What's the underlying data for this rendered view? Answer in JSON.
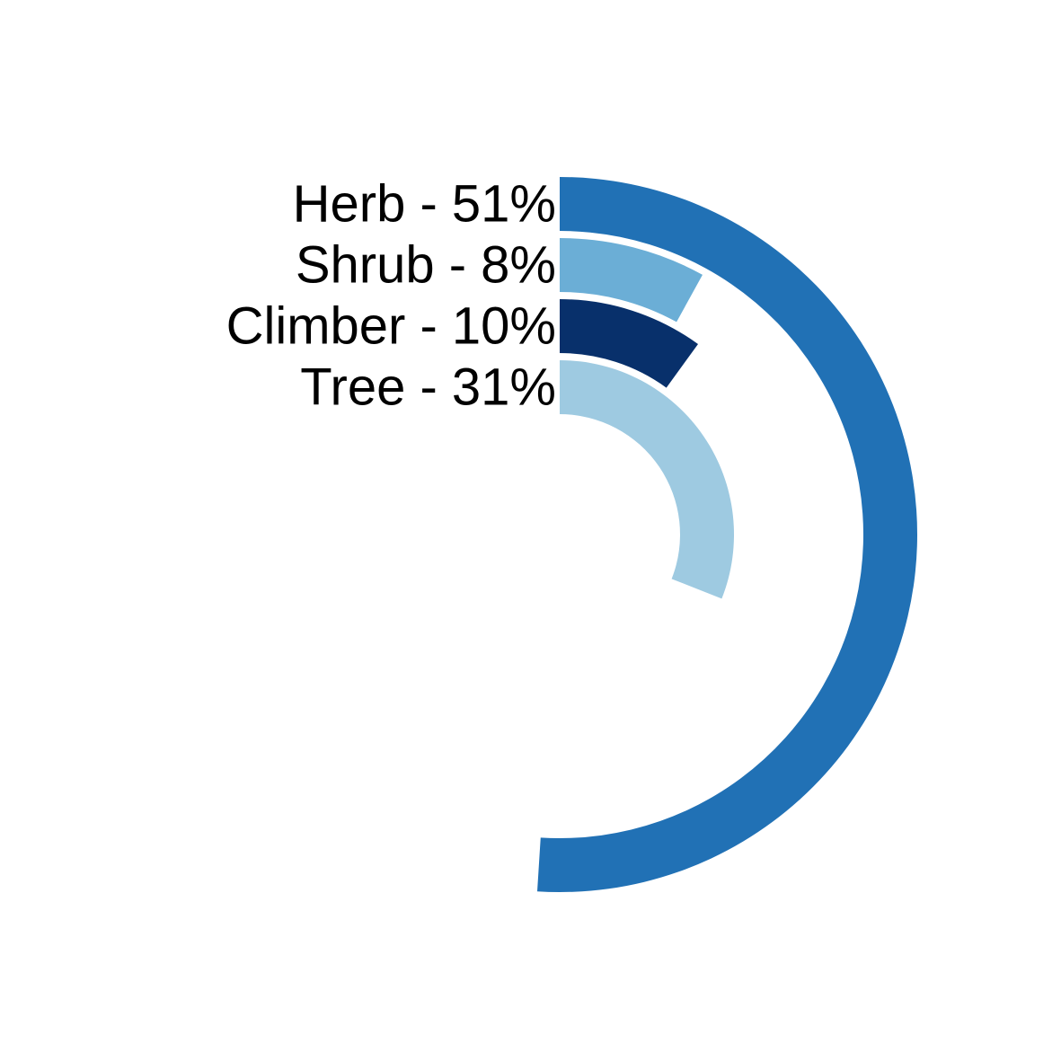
{
  "chart_data": {
    "type": "radial-bar",
    "title": "",
    "categories": [
      "Herb",
      "Shrub",
      "Climber",
      "Tree"
    ],
    "values": [
      51,
      8,
      10,
      31
    ],
    "labels": [
      "Herb - 51%",
      "Shrub - 8%",
      "Climber - 10%",
      "Tree - 31%"
    ],
    "value_unit": "%",
    "max_value": 100,
    "colors": [
      "#2171b5",
      "#6baed6",
      "#08306b",
      "#9ecae1"
    ],
    "legend": "none",
    "grid": false
  }
}
